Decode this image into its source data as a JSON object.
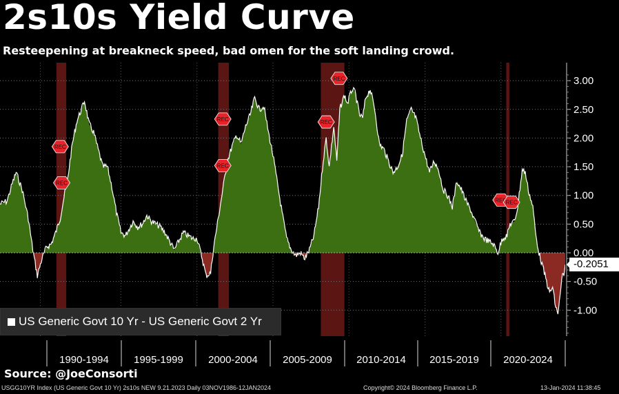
{
  "header": {
    "title": "2s10s Yield Curve",
    "subtitle": "Resteepening at breakneck speed, bad omen for the soft landing crowd."
  },
  "legend": {
    "label": "US Generic Govt 10 Yr - US Generic Govt 2 Yr"
  },
  "source": "Source: @JoeConsorti",
  "footer": {
    "left": "USGG10YR Index (US Generic Govt 10 Yr) 2s10s NEW 9.21.2023  Daily 03NOV1986-12JAN2024",
    "mid": "Copyright© 2024 Bloomberg Finance L.P.",
    "right": "13-Jan-2024 11:38:45"
  },
  "colors": {
    "background": "#000000",
    "positive_fill": "#3c6e12",
    "negative_fill": "#8a2a22",
    "recession_band": "#6b1a16",
    "line": "#ffffff",
    "rec_marker": "#e8232a"
  },
  "chart_data": {
    "type": "area",
    "title": "2s10s Yield Curve",
    "xlabel": "",
    "ylabel": "",
    "ylim": [
      -1.45,
      3.3
    ],
    "y_ticks": [
      3.0,
      2.5,
      2.0,
      1.5,
      1.0,
      0.5,
      0.0,
      -0.5,
      -1.0
    ],
    "y_tick_labels": [
      "3.00",
      "2.50",
      "2.00",
      "1.50",
      "1.00",
      "0.50",
      "0.00",
      "-0.50",
      "-1.00"
    ],
    "x_range": [
      1986.84,
      2024.03
    ],
    "x_tick_labels": [
      "1990-1994",
      "1995-1999",
      "2000-2004",
      "2005-2009",
      "2010-2014",
      "2015-2019",
      "2020-2024"
    ],
    "grid": true,
    "last_value_label": "-0.2051",
    "series": [
      {
        "name": "US Generic Govt 10 Yr - US Generic Govt 2 Yr",
        "points": [
          [
            1986.84,
            0.85
          ],
          [
            1987.3,
            0.9
          ],
          [
            1987.7,
            1.25
          ],
          [
            1987.9,
            1.4
          ],
          [
            1988.3,
            1.1
          ],
          [
            1988.7,
            0.6
          ],
          [
            1989.0,
            0.05
          ],
          [
            1989.3,
            -0.4
          ],
          [
            1989.6,
            -0.1
          ],
          [
            1989.9,
            0.1
          ],
          [
            1990.2,
            0.15
          ],
          [
            1990.5,
            0.35
          ],
          [
            1990.8,
            0.6
          ],
          [
            1991.0,
            0.9
          ],
          [
            1991.3,
            1.3
          ],
          [
            1991.6,
            1.9
          ],
          [
            1991.9,
            2.3
          ],
          [
            1992.2,
            2.5
          ],
          [
            1992.4,
            2.65
          ],
          [
            1992.7,
            2.25
          ],
          [
            1993.0,
            2.1
          ],
          [
            1993.3,
            1.8
          ],
          [
            1993.6,
            1.5
          ],
          [
            1993.9,
            1.5
          ],
          [
            1994.2,
            1.15
          ],
          [
            1994.5,
            0.7
          ],
          [
            1994.8,
            0.35
          ],
          [
            1995.1,
            0.3
          ],
          [
            1995.3,
            0.4
          ],
          [
            1995.6,
            0.55
          ],
          [
            1995.9,
            0.45
          ],
          [
            1996.2,
            0.5
          ],
          [
            1996.5,
            0.65
          ],
          [
            1996.8,
            0.55
          ],
          [
            1997.1,
            0.5
          ],
          [
            1997.4,
            0.45
          ],
          [
            1997.7,
            0.35
          ],
          [
            1998.0,
            0.2
          ],
          [
            1998.3,
            0.05
          ],
          [
            1998.6,
            0.2
          ],
          [
            1998.9,
            0.35
          ],
          [
            1999.2,
            0.3
          ],
          [
            1999.5,
            0.25
          ],
          [
            1999.8,
            0.25
          ],
          [
            2000.1,
            -0.05
          ],
          [
            2000.4,
            -0.4
          ],
          [
            2000.7,
            -0.35
          ],
          [
            2000.9,
            0.1
          ],
          [
            2001.2,
            0.6
          ],
          [
            2001.5,
            1.1
          ],
          [
            2001.8,
            1.6
          ],
          [
            2002.1,
            1.85
          ],
          [
            2002.4,
            2.05
          ],
          [
            2002.7,
            1.9
          ],
          [
            2003.0,
            2.2
          ],
          [
            2003.3,
            2.4
          ],
          [
            2003.6,
            2.7
          ],
          [
            2003.9,
            2.5
          ],
          [
            2004.2,
            2.55
          ],
          [
            2004.5,
            2.1
          ],
          [
            2004.8,
            1.7
          ],
          [
            2005.1,
            1.2
          ],
          [
            2005.4,
            0.7
          ],
          [
            2005.7,
            0.25
          ],
          [
            2006.0,
            0.05
          ],
          [
            2006.3,
            -0.05
          ],
          [
            2006.6,
            0.0
          ],
          [
            2006.9,
            -0.1
          ],
          [
            2007.2,
            0.05
          ],
          [
            2007.5,
            0.3
          ],
          [
            2007.8,
            0.8
          ],
          [
            2008.1,
            1.6
          ],
          [
            2008.3,
            2.0
          ],
          [
            2008.5,
            1.5
          ],
          [
            2008.8,
            2.2
          ],
          [
            2009.0,
            1.6
          ],
          [
            2009.2,
            2.5
          ],
          [
            2009.5,
            2.75
          ],
          [
            2009.7,
            2.6
          ],
          [
            2010.0,
            2.85
          ],
          [
            2010.2,
            2.8
          ],
          [
            2010.5,
            2.4
          ],
          [
            2010.7,
            2.35
          ],
          [
            2010.9,
            2.7
          ],
          [
            2011.2,
            2.85
          ],
          [
            2011.5,
            2.5
          ],
          [
            2011.8,
            1.9
          ],
          [
            2012.1,
            1.8
          ],
          [
            2012.4,
            1.6
          ],
          [
            2012.7,
            1.4
          ],
          [
            2013.0,
            1.5
          ],
          [
            2013.3,
            1.7
          ],
          [
            2013.6,
            2.3
          ],
          [
            2013.9,
            2.5
          ],
          [
            2014.2,
            2.35
          ],
          [
            2014.5,
            2.0
          ],
          [
            2014.8,
            1.7
          ],
          [
            2015.1,
            1.4
          ],
          [
            2015.4,
            1.6
          ],
          [
            2015.7,
            1.45
          ],
          [
            2016.0,
            1.1
          ],
          [
            2016.3,
            1.0
          ],
          [
            2016.6,
            0.8
          ],
          [
            2016.9,
            1.25
          ],
          [
            2017.2,
            1.1
          ],
          [
            2017.5,
            0.9
          ],
          [
            2017.8,
            0.75
          ],
          [
            2018.1,
            0.55
          ],
          [
            2018.4,
            0.35
          ],
          [
            2018.7,
            0.25
          ],
          [
            2019.0,
            0.2
          ],
          [
            2019.3,
            0.15
          ],
          [
            2019.6,
            0.0
          ],
          [
            2019.9,
            0.25
          ],
          [
            2020.2,
            0.3
          ],
          [
            2020.4,
            0.5
          ],
          [
            2020.7,
            0.55
          ],
          [
            2020.9,
            0.8
          ],
          [
            2021.2,
            1.45
          ],
          [
            2021.4,
            1.4
          ],
          [
            2021.6,
            1.1
          ],
          [
            2021.9,
            0.8
          ],
          [
            2022.1,
            0.3
          ],
          [
            2022.3,
            0.0
          ],
          [
            2022.5,
            -0.2
          ],
          [
            2022.8,
            -0.5
          ],
          [
            2023.0,
            -0.7
          ],
          [
            2023.2,
            -0.6
          ],
          [
            2023.4,
            -0.95
          ],
          [
            2023.55,
            -1.05
          ],
          [
            2023.7,
            -0.75
          ],
          [
            2023.85,
            -0.35
          ],
          [
            2023.95,
            -0.45
          ],
          [
            2024.03,
            -0.2051
          ]
        ]
      }
    ],
    "recessions": [
      [
        1990.55,
        1991.2
      ],
      [
        2001.2,
        2001.9
      ],
      [
        2007.95,
        2009.5
      ],
      [
        2020.15,
        2020.35
      ]
    ],
    "rec_markers": [
      {
        "label": "REC",
        "x": 1990.8,
        "y": 1.85
      },
      {
        "label": "REC",
        "x": 1990.9,
        "y": 1.22
      },
      {
        "label": "REC",
        "x": 2001.5,
        "y": 2.33
      },
      {
        "label": "REC",
        "x": 2001.5,
        "y": 1.52
      },
      {
        "label": "REC",
        "x": 2008.3,
        "y": 2.28
      },
      {
        "label": "REC",
        "x": 2009.15,
        "y": 3.04
      },
      {
        "label": "REC",
        "x": 2019.8,
        "y": 0.92
      },
      {
        "label": "REC",
        "x": 2020.5,
        "y": 0.88
      }
    ]
  }
}
